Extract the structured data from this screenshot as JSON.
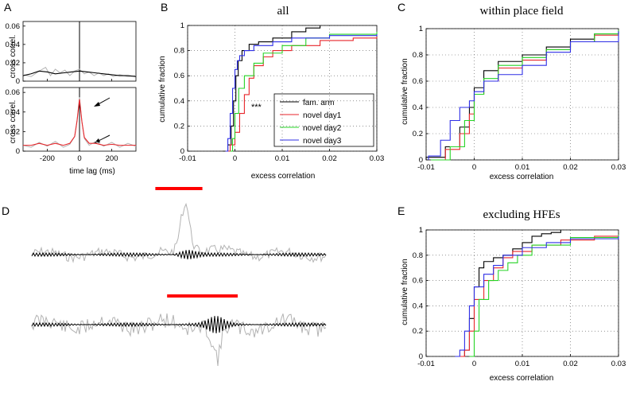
{
  "figure": {
    "panel_labels": [
      "A",
      "B",
      "C",
      "D",
      "E"
    ],
    "legend_entries": [
      {
        "label": "fam. arm",
        "color": "#000000"
      },
      {
        "label": "novel day1",
        "color": "#e8262b"
      },
      {
        "label": "novel day2",
        "color": "#26d426"
      },
      {
        "label": "novel day3",
        "color": "#2f2fe6"
      }
    ],
    "significance_marker": "***",
    "colors": {
      "black": "#000000",
      "red": "#e8262b",
      "green": "#26d426",
      "blue": "#2f2fe6",
      "gray": "#b3b3b3",
      "bar_red": "#ff0000"
    }
  },
  "chart_data": [
    {
      "id": "A-top",
      "type": "line",
      "title": "",
      "xlabel": "",
      "ylabel": "cross correl.",
      "xlim": [
        -350,
        350
      ],
      "ylim": [
        0,
        0.065
      ],
      "xticks": [
        -200,
        0,
        200
      ],
      "yticks": [
        0,
        0.02,
        0.04,
        0.06
      ],
      "xtick_labels": [
        "",
        "",
        ""
      ],
      "ytick_labels": [
        "0",
        "0.02",
        "0.04",
        "0.06"
      ],
      "series": [
        {
          "name": "raw",
          "color": "gray",
          "x": [
            -350,
            -300,
            -250,
            -210,
            -180,
            -150,
            -120,
            -90,
            -60,
            -30,
            0,
            30,
            60,
            90,
            120,
            150,
            180,
            210,
            250,
            300,
            350
          ],
          "y": [
            0.007,
            0.005,
            0.011,
            0.015,
            0.006,
            0.013,
            0.009,
            0.012,
            0.006,
            0.011,
            0.013,
            0.008,
            0.01,
            0.006,
            0.009,
            0.006,
            0.008,
            0.005,
            0.007,
            0.005,
            0.006
          ]
        },
        {
          "name": "fit",
          "color": "black",
          "x": [
            -350,
            -300,
            -250,
            -200,
            -150,
            -100,
            -50,
            0,
            50,
            100,
            150,
            200,
            250,
            300,
            350
          ],
          "y": [
            0.006,
            0.008,
            0.011,
            0.01,
            0.008,
            0.009,
            0.01,
            0.011,
            0.01,
            0.009,
            0.008,
            0.007,
            0.006,
            0.006,
            0.005
          ]
        }
      ]
    },
    {
      "id": "A-bottom",
      "type": "line",
      "title": "",
      "xlabel": "time lag (ms)",
      "ylabel": "cross correl.",
      "xlim": [
        -350,
        350
      ],
      "ylim": [
        0,
        0.065
      ],
      "xticks": [
        -200,
        0,
        200
      ],
      "yticks": [
        0,
        0.02,
        0.04,
        0.06
      ],
      "xtick_labels": [
        "-200",
        "0",
        "200"
      ],
      "ytick_labels": [
        "0",
        "0.02",
        "0.04",
        "0.06"
      ],
      "series": [
        {
          "name": "raw",
          "color": "gray",
          "x": [
            -350,
            -300,
            -250,
            -200,
            -150,
            -100,
            -60,
            -30,
            -15,
            0,
            15,
            30,
            60,
            100,
            150,
            200,
            250,
            300,
            350
          ],
          "y": [
            0.006,
            0.004,
            0.009,
            0.005,
            0.01,
            0.004,
            0.007,
            0.015,
            0.032,
            0.055,
            0.03,
            0.013,
            0.006,
            0.01,
            0.005,
            0.009,
            0.004,
            0.008,
            0.005
          ]
        },
        {
          "name": "fit",
          "color": "red",
          "x": [
            -350,
            -300,
            -250,
            -200,
            -150,
            -100,
            -60,
            -30,
            -15,
            0,
            15,
            30,
            60,
            100,
            150,
            200,
            250,
            300,
            350
          ],
          "y": [
            0.006,
            0.006,
            0.008,
            0.006,
            0.008,
            0.006,
            0.008,
            0.015,
            0.031,
            0.053,
            0.03,
            0.014,
            0.008,
            0.008,
            0.006,
            0.007,
            0.006,
            0.006,
            0.006
          ]
        }
      ]
    },
    {
      "id": "B",
      "type": "line",
      "title": "all",
      "xlabel": "excess correlation",
      "ylabel": "cumulative fraction",
      "xlim": [
        -0.01,
        0.03
      ],
      "ylim": [
        0,
        1
      ],
      "xticks": [
        -0.01,
        0,
        0.01,
        0.02,
        0.03
      ],
      "yticks": [
        0,
        0.2,
        0.4,
        0.6,
        0.8,
        1
      ],
      "xtick_labels": [
        "-0.01",
        "0",
        "0.01",
        "0.02",
        "0.03"
      ],
      "ytick_labels": [
        "0",
        "0.2",
        "0.4",
        "0.6",
        "0.8",
        "1"
      ],
      "series": [
        {
          "name": "fam. arm",
          "color": "black",
          "x": [
            -0.0025,
            -0.0015,
            -0.0008,
            -0.0003,
            0.0002,
            0.0007,
            0.0015,
            0.003,
            0.005,
            0.008,
            0.012,
            0.015,
            0.018
          ],
          "y": [
            0,
            0.05,
            0.2,
            0.4,
            0.6,
            0.72,
            0.8,
            0.85,
            0.87,
            0.9,
            0.95,
            0.98,
            1.0
          ]
        },
        {
          "name": "novel day1",
          "color": "red",
          "x": [
            -0.002,
            -0.001,
            0,
            0.001,
            0.002,
            0.003,
            0.004,
            0.006,
            0.008,
            0.012,
            0.018,
            0.025,
            0.03
          ],
          "y": [
            0,
            0.05,
            0.15,
            0.3,
            0.45,
            0.58,
            0.68,
            0.75,
            0.8,
            0.84,
            0.88,
            0.9,
            0.91
          ]
        },
        {
          "name": "novel day2",
          "color": "green",
          "x": [
            -0.001,
            -0.0005,
            0,
            0.0008,
            0.002,
            0.004,
            0.006,
            0.01,
            0.015,
            0.02,
            0.03
          ],
          "y": [
            0,
            0.1,
            0.3,
            0.5,
            0.6,
            0.7,
            0.78,
            0.84,
            0.9,
            0.93,
            0.95
          ]
        },
        {
          "name": "novel day3",
          "color": "blue",
          "x": [
            -0.002,
            -0.0015,
            -0.001,
            -0.0005,
            0,
            0.0005,
            0.001,
            0.002,
            0.004,
            0.008,
            0.012,
            0.02,
            0.03
          ],
          "y": [
            0,
            0.1,
            0.3,
            0.5,
            0.65,
            0.72,
            0.76,
            0.8,
            0.84,
            0.87,
            0.9,
            0.92,
            0.93
          ]
        }
      ]
    },
    {
      "id": "C",
      "type": "line",
      "title": "within place field",
      "xlabel": "excess correlation",
      "ylabel": "cumulative fraction",
      "xlim": [
        -0.01,
        0.03
      ],
      "ylim": [
        0,
        1
      ],
      "xticks": [
        -0.01,
        0,
        0.01,
        0.02,
        0.03
      ],
      "yticks": [
        0,
        0.2,
        0.4,
        0.6,
        0.8,
        1
      ],
      "xtick_labels": [
        "-0.01",
        "0",
        "0.01",
        "0.02",
        "0.03"
      ],
      "ytick_labels": [
        "0",
        "0.2",
        "0.4",
        "0.6",
        "0.8",
        "1"
      ],
      "series": [
        {
          "name": "fam. arm",
          "color": "black",
          "x": [
            -0.01,
            -0.006,
            -0.003,
            -0.001,
            0,
            0.002,
            0.005,
            0.01,
            0.015,
            0.02,
            0.025,
            0.03
          ],
          "y": [
            0.02,
            0.1,
            0.25,
            0.4,
            0.55,
            0.68,
            0.75,
            0.8,
            0.86,
            0.92,
            0.96,
            0.99
          ]
        },
        {
          "name": "novel day1",
          "color": "red",
          "x": [
            -0.009,
            -0.006,
            -0.003,
            -0.001,
            0,
            0.002,
            0.005,
            0.01,
            0.015,
            0.02,
            0.025,
            0.03
          ],
          "y": [
            0,
            0.08,
            0.2,
            0.35,
            0.5,
            0.6,
            0.7,
            0.76,
            0.84,
            0.9,
            0.95,
            0.98
          ]
        },
        {
          "name": "novel day2",
          "color": "green",
          "x": [
            -0.009,
            -0.005,
            -0.002,
            0,
            0.002,
            0.005,
            0.01,
            0.015,
            0.02,
            0.025,
            0.03
          ],
          "y": [
            0,
            0.1,
            0.3,
            0.5,
            0.62,
            0.72,
            0.78,
            0.84,
            0.9,
            0.96,
            0.99
          ]
        },
        {
          "name": "novel day3",
          "color": "blue",
          "x": [
            -0.0095,
            -0.007,
            -0.005,
            -0.003,
            -0.001,
            0,
            0.002,
            0.005,
            0.01,
            0.015,
            0.02,
            0.03
          ],
          "y": [
            0.03,
            0.15,
            0.3,
            0.4,
            0.45,
            0.52,
            0.6,
            0.65,
            0.72,
            0.82,
            0.9,
            0.98
          ]
        }
      ]
    },
    {
      "id": "D",
      "type": "line",
      "title": "",
      "xlabel": "",
      "ylabel": "",
      "xlim": [
        0,
        1
      ],
      "ylim": [
        -1,
        1
      ],
      "series": [
        {
          "name": "event-1 marker",
          "color": "bar_red",
          "x": [
            0.42,
            0.58
          ],
          "y": [
            0,
            0
          ]
        },
        {
          "name": "event-2 marker",
          "color": "bar_red",
          "x": [
            0.46,
            0.7
          ],
          "y": [
            0,
            0
          ]
        }
      ]
    },
    {
      "id": "E",
      "type": "line",
      "title": "excluding HFEs",
      "xlabel": "excess correlation",
      "ylabel": "cumulative fraction",
      "xlim": [
        -0.01,
        0.03
      ],
      "ylim": [
        0,
        1
      ],
      "xticks": [
        -0.01,
        0,
        0.01,
        0.02,
        0.03
      ],
      "yticks": [
        0,
        0.2,
        0.4,
        0.6,
        0.8,
        1
      ],
      "xtick_labels": [
        "-0.01",
        "0",
        "0.01",
        "0.02",
        "0.03"
      ],
      "ytick_labels": [
        "0",
        "0.2",
        "0.4",
        "0.6",
        "0.8",
        "1"
      ],
      "series": [
        {
          "name": "fam. arm",
          "color": "black",
          "x": [
            -0.004,
            -0.002,
            -0.001,
            0,
            0.001,
            0.002,
            0.004,
            0.006,
            0.008,
            0.01,
            0.012,
            0.014,
            0.016,
            0.018
          ],
          "y": [
            0,
            0.05,
            0.3,
            0.55,
            0.7,
            0.75,
            0.78,
            0.8,
            0.85,
            0.9,
            0.95,
            0.97,
            0.98,
            1.0
          ]
        },
        {
          "name": "novel day1",
          "color": "red",
          "x": [
            -0.003,
            -0.002,
            -0.001,
            0,
            0.002,
            0.004,
            0.006,
            0.008,
            0.012,
            0.018,
            0.025,
            0.03
          ],
          "y": [
            0,
            0.05,
            0.2,
            0.45,
            0.6,
            0.7,
            0.78,
            0.83,
            0.88,
            0.92,
            0.95,
            0.95
          ]
        },
        {
          "name": "novel day2",
          "color": "green",
          "x": [
            -0.001,
            0,
            0.001,
            0.003,
            0.005,
            0.007,
            0.009,
            0.012,
            0.02,
            0.03
          ],
          "y": [
            0,
            0.2,
            0.45,
            0.6,
            0.68,
            0.74,
            0.8,
            0.88,
            0.94,
            0.96
          ]
        },
        {
          "name": "novel day3",
          "color": "blue",
          "x": [
            -0.004,
            -0.003,
            -0.002,
            -0.001,
            0,
            0.002,
            0.004,
            0.006,
            0.01,
            0.015,
            0.02,
            0.03
          ],
          "y": [
            0,
            0.05,
            0.2,
            0.4,
            0.55,
            0.65,
            0.72,
            0.8,
            0.86,
            0.9,
            0.93,
            0.95
          ]
        }
      ]
    }
  ]
}
